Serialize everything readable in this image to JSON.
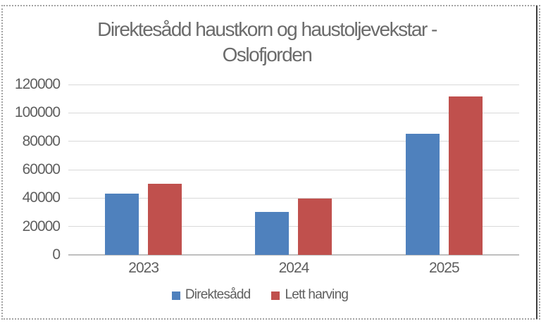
{
  "chart_object": {
    "selected": true,
    "selection_border_style": "dotted"
  },
  "chart_data": {
    "type": "bar",
    "title": "Direktesådd haustkorn og haustoljevekstar - Oslofjorden",
    "title_lines": [
      "Direktesådd haustkorn og haustoljevekstar -",
      "Oslofjorden"
    ],
    "categories": [
      "2023",
      "2024",
      "2025"
    ],
    "series": [
      {
        "name": "Direktesådd",
        "color": "#4F81BD",
        "values": [
          43000,
          30500,
          85500
        ]
      },
      {
        "name": "Lett harving",
        "color": "#C0504D",
        "values": [
          50000,
          39500,
          111500
        ]
      }
    ],
    "xlabel": "",
    "ylabel": "",
    "ylim": [
      0,
      120000
    ],
    "ytick_step": 20000,
    "yticks": [
      0,
      20000,
      40000,
      60000,
      80000,
      100000,
      120000
    ],
    "grid": true,
    "legend_position": "bottom",
    "colors": {
      "title_text": "#6B6B6B",
      "axis_text": "#5F5F5F",
      "gridline": "#D9D9D9",
      "axis_line": "#BFBFBF",
      "selection_border": "#A3A3A3",
      "window_edge_line": "#3D3D3D",
      "background": "#FFFFFF"
    }
  }
}
